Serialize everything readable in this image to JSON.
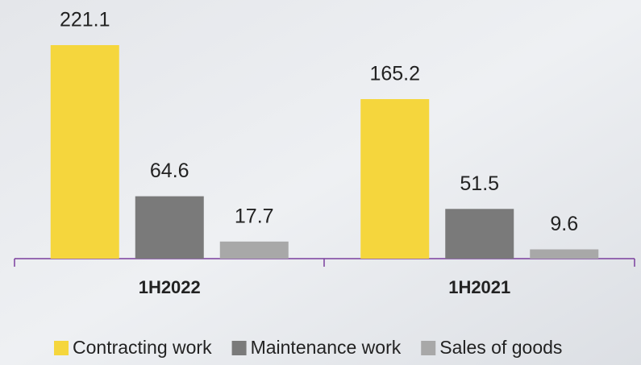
{
  "chart_data": {
    "type": "bar",
    "categories": [
      "1H2022",
      "1H2021"
    ],
    "series": [
      {
        "name": "Contracting work",
        "color": "#f5d63d",
        "values": [
          221.1,
          165.2
        ]
      },
      {
        "name": "Maintenance work",
        "color": "#7a7a7a",
        "values": [
          64.6,
          51.5
        ]
      },
      {
        "name": "Sales of goods",
        "color": "#a8a8a8",
        "values": [
          17.7,
          9.6
        ]
      }
    ]
  }
}
